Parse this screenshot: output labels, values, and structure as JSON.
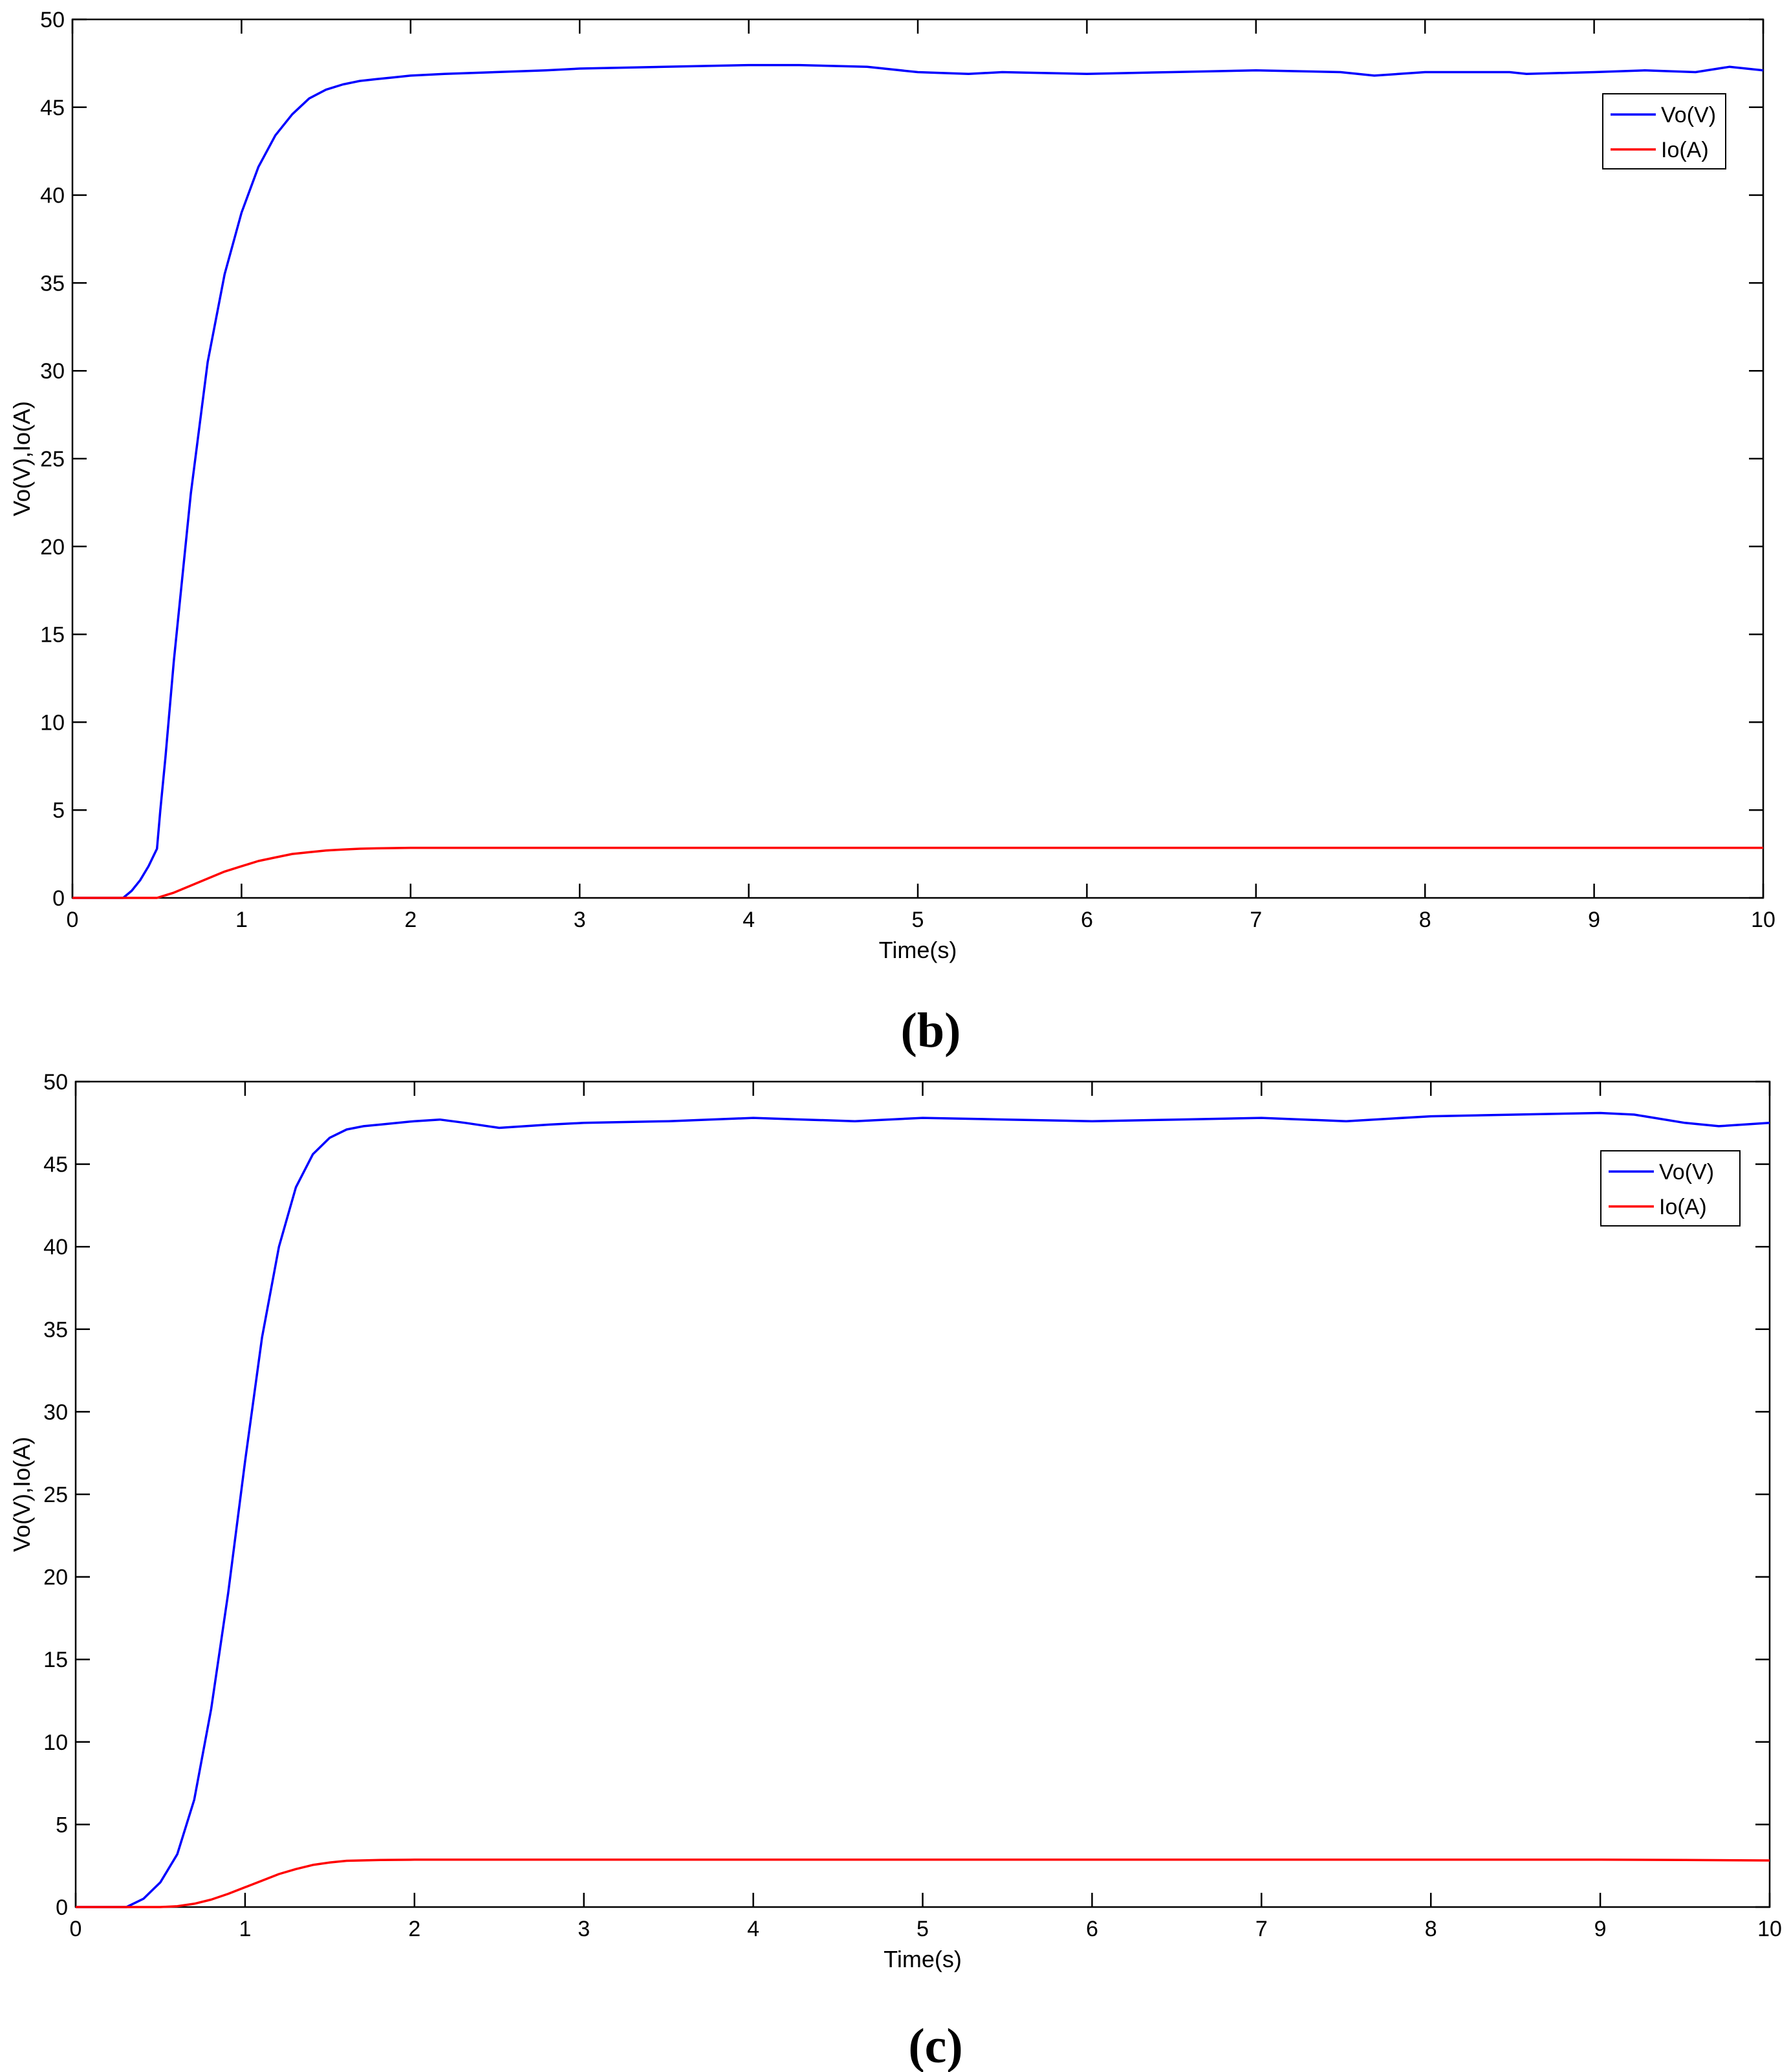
{
  "chart_data": [
    {
      "type": "line",
      "panel_label": "(b)",
      "xlabel": "Time(s)",
      "ylabel": "Vo(V),Io(A)",
      "xlim": [
        0,
        10
      ],
      "ylim": [
        0,
        50
      ],
      "xticks": [
        0,
        1,
        2,
        3,
        4,
        5,
        6,
        7,
        8,
        9,
        10
      ],
      "yticks": [
        0,
        5,
        10,
        15,
        20,
        25,
        30,
        35,
        40,
        45,
        50
      ],
      "grid": false,
      "legend_position": "top-right",
      "series": [
        {
          "name": "Vo(V)",
          "color": "#0000ff",
          "x": [
            0,
            0.3,
            0.35,
            0.4,
            0.45,
            0.5,
            0.52,
            0.55,
            0.6,
            0.7,
            0.8,
            0.9,
            1.0,
            1.1,
            1.2,
            1.3,
            1.4,
            1.5,
            1.6,
            1.7,
            1.8,
            1.9,
            2.0,
            2.2,
            2.5,
            2.8,
            3.0,
            3.5,
            4.0,
            4.3,
            4.7,
            5.0,
            5.3,
            5.5,
            6.0,
            6.5,
            7.0,
            7.5,
            7.7,
            8.0,
            8.5,
            8.6,
            9.0,
            9.3,
            9.6,
            9.8,
            10.0
          ],
          "y": [
            0,
            0,
            0.4,
            1.0,
            1.8,
            2.8,
            5.0,
            8.0,
            13.5,
            23.0,
            30.5,
            35.5,
            39.0,
            41.6,
            43.4,
            44.6,
            45.5,
            46.0,
            46.3,
            46.5,
            46.6,
            46.7,
            46.8,
            46.9,
            47.0,
            47.1,
            47.2,
            47.3,
            47.4,
            47.4,
            47.3,
            47.0,
            46.9,
            47.0,
            46.9,
            47.0,
            47.1,
            47.0,
            46.8,
            47.0,
            47.0,
            46.9,
            47.0,
            47.1,
            47.0,
            47.3,
            47.1
          ]
        },
        {
          "name": "Io(A)",
          "color": "#ff0000",
          "x": [
            0,
            0.5,
            0.6,
            0.7,
            0.8,
            0.9,
            1.0,
            1.1,
            1.2,
            1.3,
            1.4,
            1.5,
            1.6,
            1.7,
            1.8,
            2.0,
            3.0,
            4.0,
            5.0,
            6.0,
            7.0,
            8.0,
            9.0,
            10.0
          ],
          "y": [
            0,
            0,
            0.3,
            0.7,
            1.1,
            1.5,
            1.8,
            2.1,
            2.3,
            2.5,
            2.6,
            2.7,
            2.75,
            2.8,
            2.82,
            2.85,
            2.85,
            2.85,
            2.85,
            2.85,
            2.85,
            2.85,
            2.85,
            2.85
          ]
        }
      ]
    },
    {
      "type": "line",
      "panel_label": "(c)",
      "xlabel": "Time(s)",
      "ylabel": "Vo(V),Io(A)",
      "xlim": [
        0,
        10
      ],
      "ylim": [
        0,
        50
      ],
      "xticks": [
        0,
        1,
        2,
        3,
        4,
        5,
        6,
        7,
        8,
        9,
        10
      ],
      "yticks": [
        0,
        5,
        10,
        15,
        20,
        25,
        30,
        35,
        40,
        45,
        50
      ],
      "grid": false,
      "legend_position": "top-right",
      "series": [
        {
          "name": "Vo(V)",
          "color": "#0000ff",
          "x": [
            0,
            0.3,
            0.4,
            0.5,
            0.6,
            0.7,
            0.8,
            0.9,
            1.0,
            1.1,
            1.2,
            1.3,
            1.4,
            1.5,
            1.6,
            1.7,
            1.8,
            2.0,
            2.15,
            2.3,
            2.5,
            2.8,
            3.0,
            3.5,
            4.0,
            4.3,
            4.6,
            5.0,
            5.5,
            6.0,
            6.5,
            7.0,
            7.5,
            8.0,
            8.5,
            9.0,
            9.2,
            9.5,
            9.7,
            10.0
          ],
          "y": [
            0,
            0,
            0.5,
            1.5,
            3.2,
            6.5,
            12.0,
            19.0,
            27.0,
            34.5,
            40.0,
            43.6,
            45.6,
            46.6,
            47.1,
            47.3,
            47.4,
            47.6,
            47.7,
            47.5,
            47.2,
            47.4,
            47.5,
            47.6,
            47.8,
            47.7,
            47.6,
            47.8,
            47.7,
            47.6,
            47.7,
            47.8,
            47.6,
            47.9,
            48.0,
            48.1,
            48.0,
            47.5,
            47.3,
            47.5
          ]
        },
        {
          "name": "Io(A)",
          "color": "#ff0000",
          "x": [
            0,
            0.5,
            0.6,
            0.7,
            0.8,
            0.9,
            1.0,
            1.1,
            1.2,
            1.3,
            1.4,
            1.5,
            1.6,
            1.8,
            2.0,
            3.0,
            4.0,
            5.0,
            6.0,
            7.0,
            8.0,
            9.0,
            9.5,
            10.0
          ],
          "y": [
            0,
            0,
            0.05,
            0.2,
            0.45,
            0.8,
            1.2,
            1.6,
            2.0,
            2.3,
            2.55,
            2.7,
            2.8,
            2.85,
            2.87,
            2.87,
            2.87,
            2.87,
            2.87,
            2.87,
            2.87,
            2.87,
            2.85,
            2.82
          ]
        }
      ]
    }
  ]
}
